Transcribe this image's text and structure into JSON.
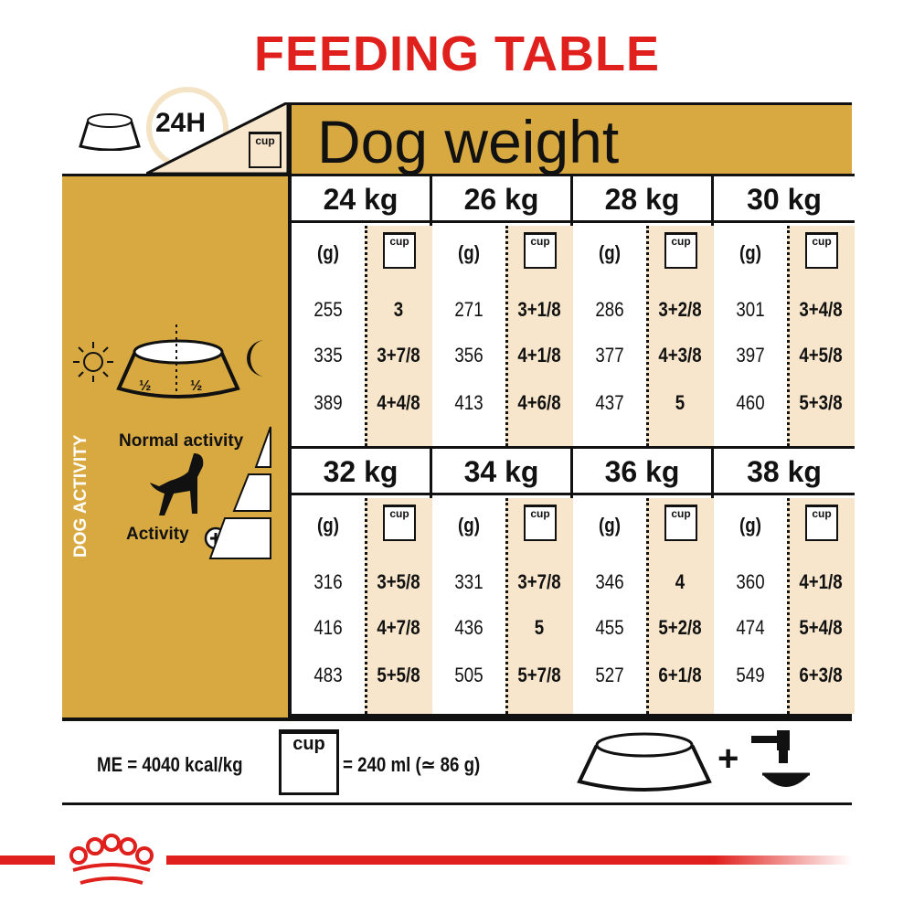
{
  "title": "FEEDING TABLE",
  "top_left": {
    "label_24h": "24H",
    "cup_icon_label": "cup"
  },
  "header": {
    "title": "Dog weight"
  },
  "left_panel": {
    "half_left": "½",
    "half_right": "½",
    "vertical_label": "DOG ACTIVITY",
    "normal_activity": "Normal activity",
    "activity_plus": "Activity"
  },
  "table": {
    "unit_label": "(g)",
    "cup_label": "cup",
    "blocks": [
      {
        "weight": "24 kg",
        "rows": [
          [
            "255",
            "3"
          ],
          [
            "335",
            "3+7/8"
          ],
          [
            "389",
            "4+4/8"
          ]
        ]
      },
      {
        "weight": "26 kg",
        "rows": [
          [
            "271",
            "3+1/8"
          ],
          [
            "356",
            "4+1/8"
          ],
          [
            "413",
            "4+6/8"
          ]
        ]
      },
      {
        "weight": "28 kg",
        "rows": [
          [
            "286",
            "3+2/8"
          ],
          [
            "377",
            "4+3/8"
          ],
          [
            "437",
            "5"
          ]
        ]
      },
      {
        "weight": "30 kg",
        "rows": [
          [
            "301",
            "3+4/8"
          ],
          [
            "397",
            "4+5/8"
          ],
          [
            "460",
            "5+3/8"
          ]
        ]
      },
      {
        "weight": "32 kg",
        "rows": [
          [
            "316",
            "3+5/8"
          ],
          [
            "416",
            "4+7/8"
          ],
          [
            "483",
            "5+5/8"
          ]
        ]
      },
      {
        "weight": "34 kg",
        "rows": [
          [
            "331",
            "3+7/8"
          ],
          [
            "436",
            "5"
          ],
          [
            "505",
            "5+7/8"
          ]
        ]
      },
      {
        "weight": "36 kg",
        "rows": [
          [
            "346",
            "4"
          ],
          [
            "455",
            "5+2/8"
          ],
          [
            "527",
            "6+1/8"
          ]
        ]
      },
      {
        "weight": "38 kg",
        "rows": [
          [
            "360",
            "4+1/8"
          ],
          [
            "474",
            "5+4/8"
          ],
          [
            "549",
            "6+3/8"
          ]
        ]
      }
    ]
  },
  "footer": {
    "me": "ME = 4040 kcal/kg",
    "cup_label": "cup",
    "cup_equiv": "= 240 ml (≃ 86 g)",
    "plus": "+"
  },
  "colors": {
    "brand_red": "#e0201c",
    "gold": "#d9a941",
    "cream": "#f7e6cc"
  }
}
